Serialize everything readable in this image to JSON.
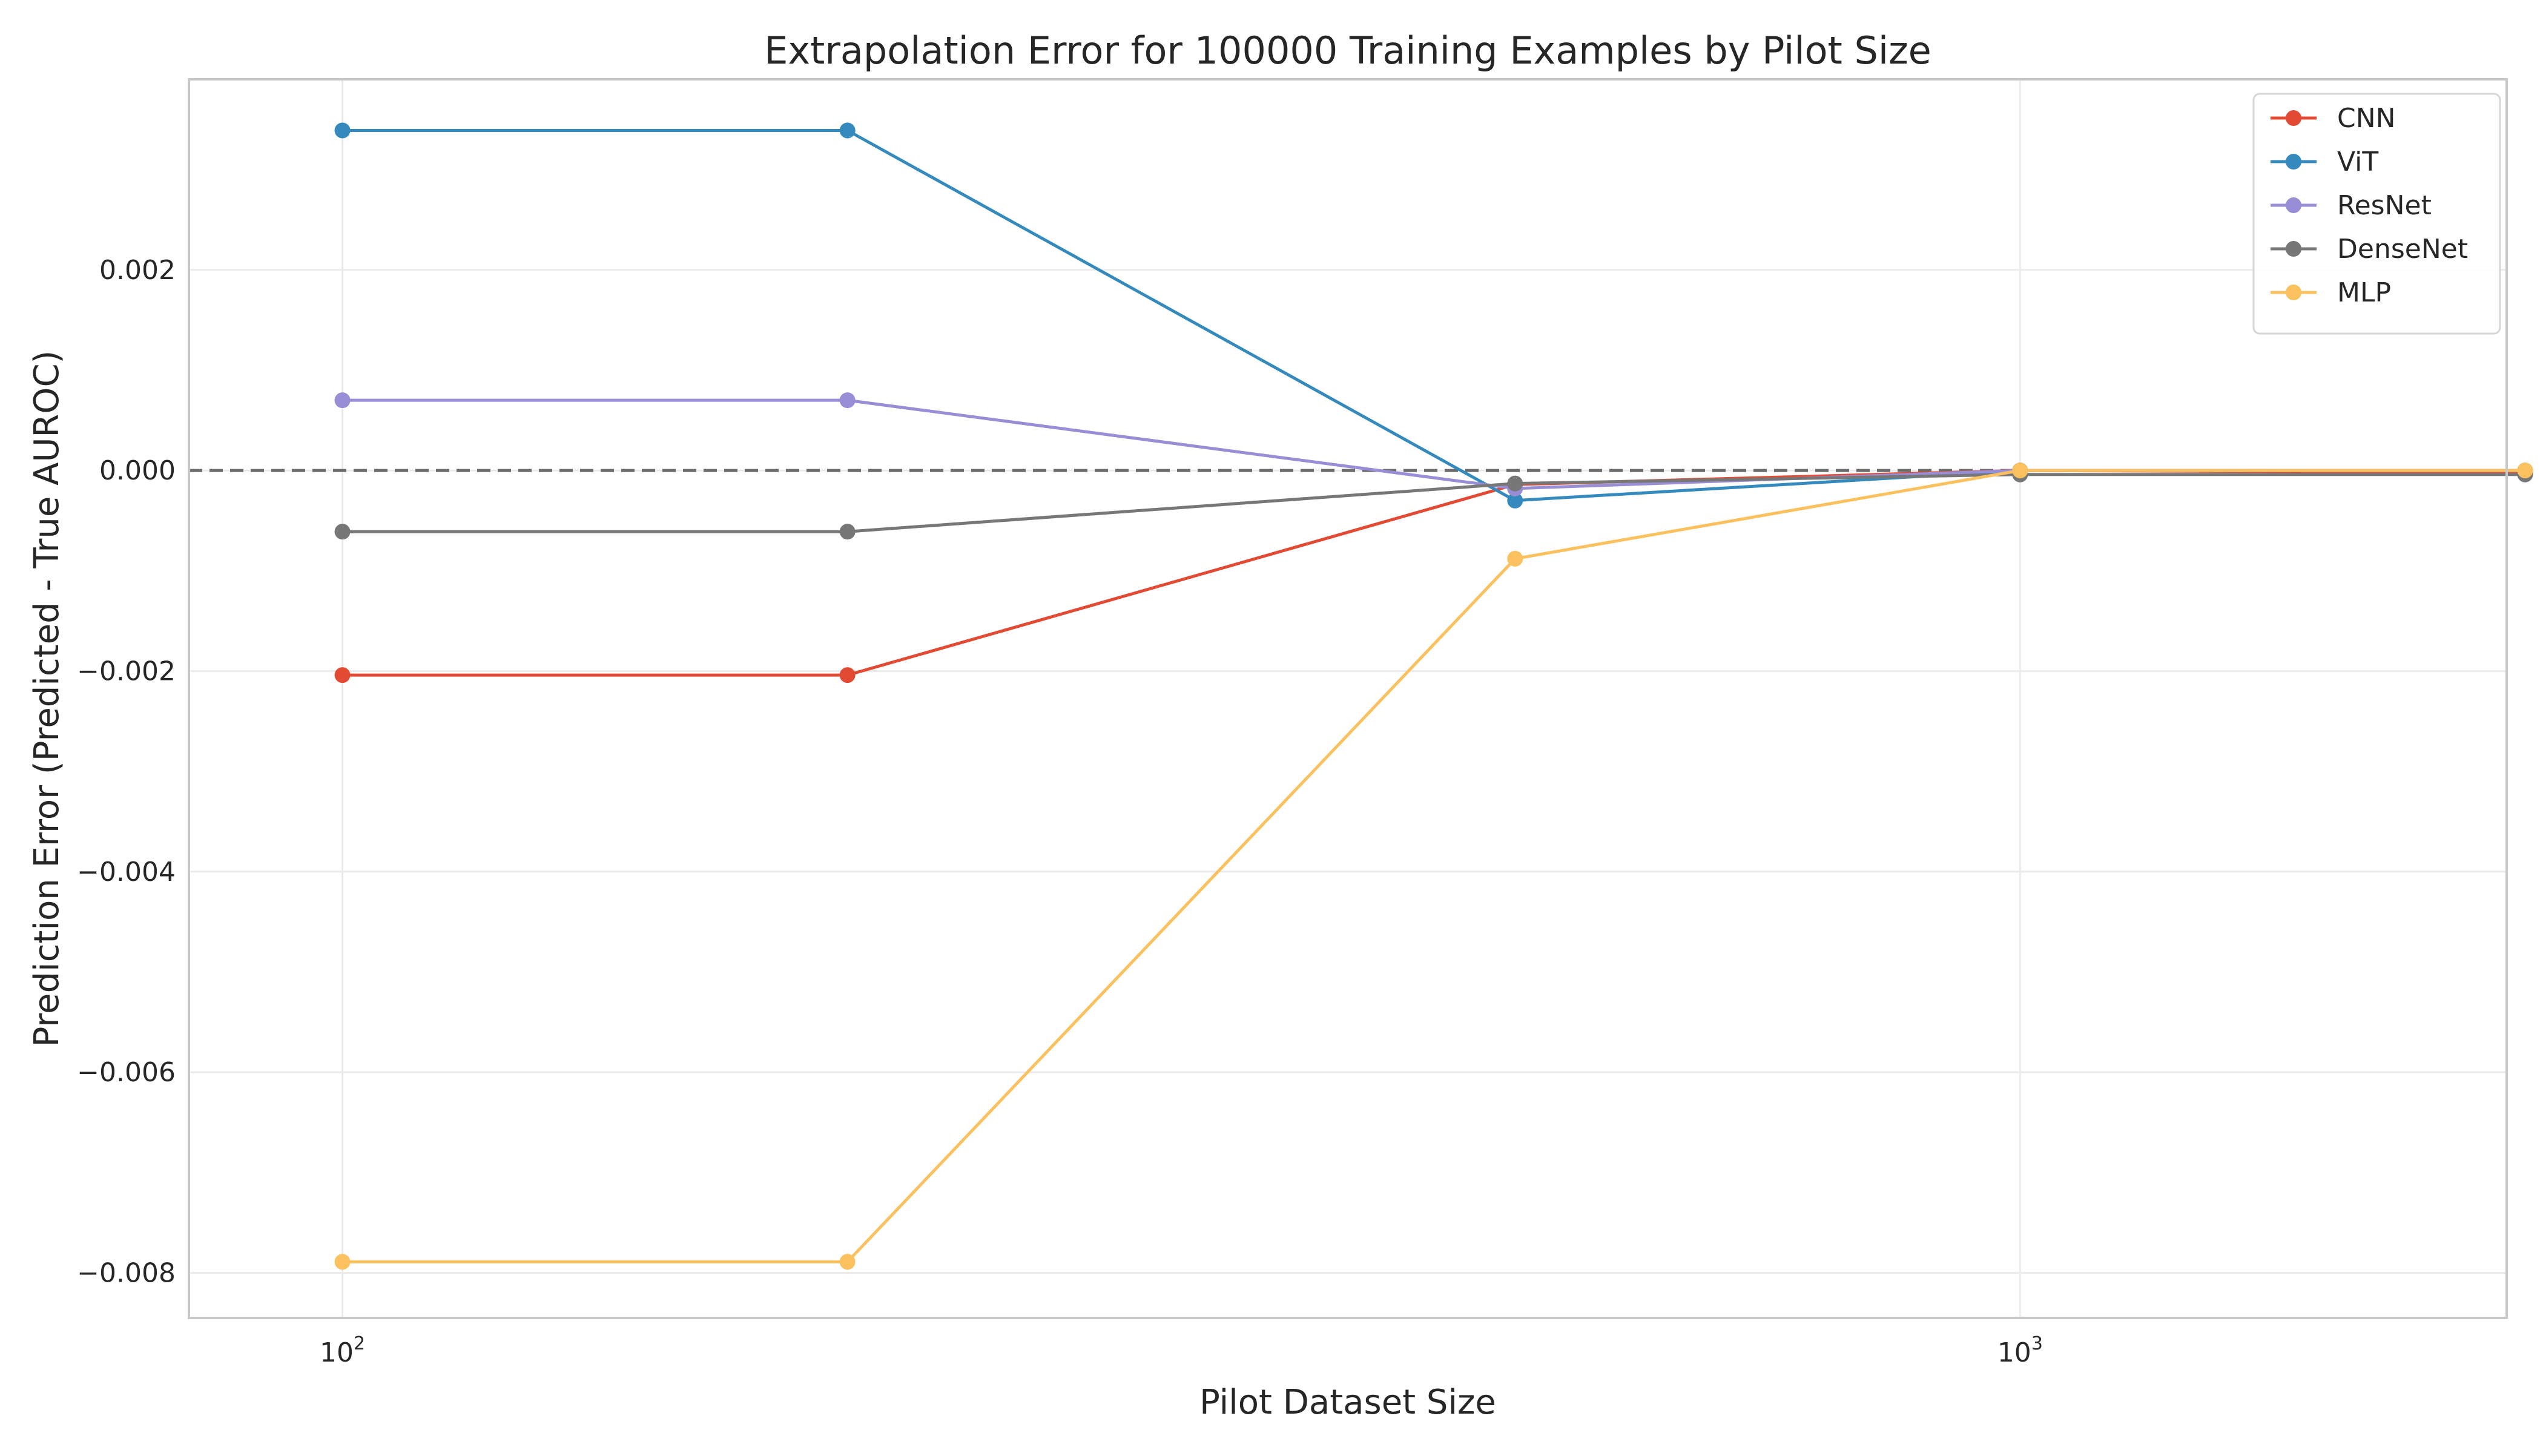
{
  "chart_data": {
    "type": "line",
    "title": "Extrapolation Error for 100000 Training Examples by Pilot Size",
    "xlabel": "Pilot Dataset Size",
    "ylabel": "Prediction Error (Predicted - True AUROC)",
    "x_scale": "log",
    "xlim": [
      81,
      1950
    ],
    "ylim": [
      -0.00845,
      0.0039
    ],
    "x": [
      100,
      200,
      500,
      1000,
      2000
    ],
    "x_ticks": [
      {
        "value": 100,
        "base": "10",
        "exp": "2"
      },
      {
        "value": 1000,
        "base": "10",
        "exp": "3"
      }
    ],
    "y_ticks": [
      {
        "value": 0.002,
        "label": "0.002"
      },
      {
        "value": 0.0,
        "label": "0.000"
      },
      {
        "value": -0.002,
        "label": "−0.002"
      },
      {
        "value": -0.004,
        "label": "−0.004"
      },
      {
        "value": -0.006,
        "label": "−0.006"
      },
      {
        "value": -0.008,
        "label": "−0.008"
      }
    ],
    "reference_line": {
      "y": 0.0,
      "style": "dashed",
      "color": "#6b6b6b"
    },
    "grid": true,
    "legend_position": "top-right",
    "series": [
      {
        "name": "CNN",
        "color": "#E24A33",
        "values": [
          -0.00204,
          -0.00204,
          -0.00014,
          0.0,
          -2e-05
        ]
      },
      {
        "name": "ViT",
        "color": "#348ABD",
        "values": [
          0.00339,
          0.00339,
          -0.0003,
          0.0,
          0.0
        ]
      },
      {
        "name": "ResNet",
        "color": "#988ED5",
        "values": [
          0.0007,
          0.0007,
          -0.00018,
          0.0,
          0.0
        ]
      },
      {
        "name": "DenseNet",
        "color": "#777777",
        "values": [
          -0.00061,
          -0.00061,
          -0.00013,
          -4e-05,
          -4e-05
        ]
      },
      {
        "name": "MLP",
        "color": "#FBC15E",
        "values": [
          -0.00789,
          -0.00789,
          -0.00088,
          0.0,
          0.0
        ]
      }
    ]
  }
}
